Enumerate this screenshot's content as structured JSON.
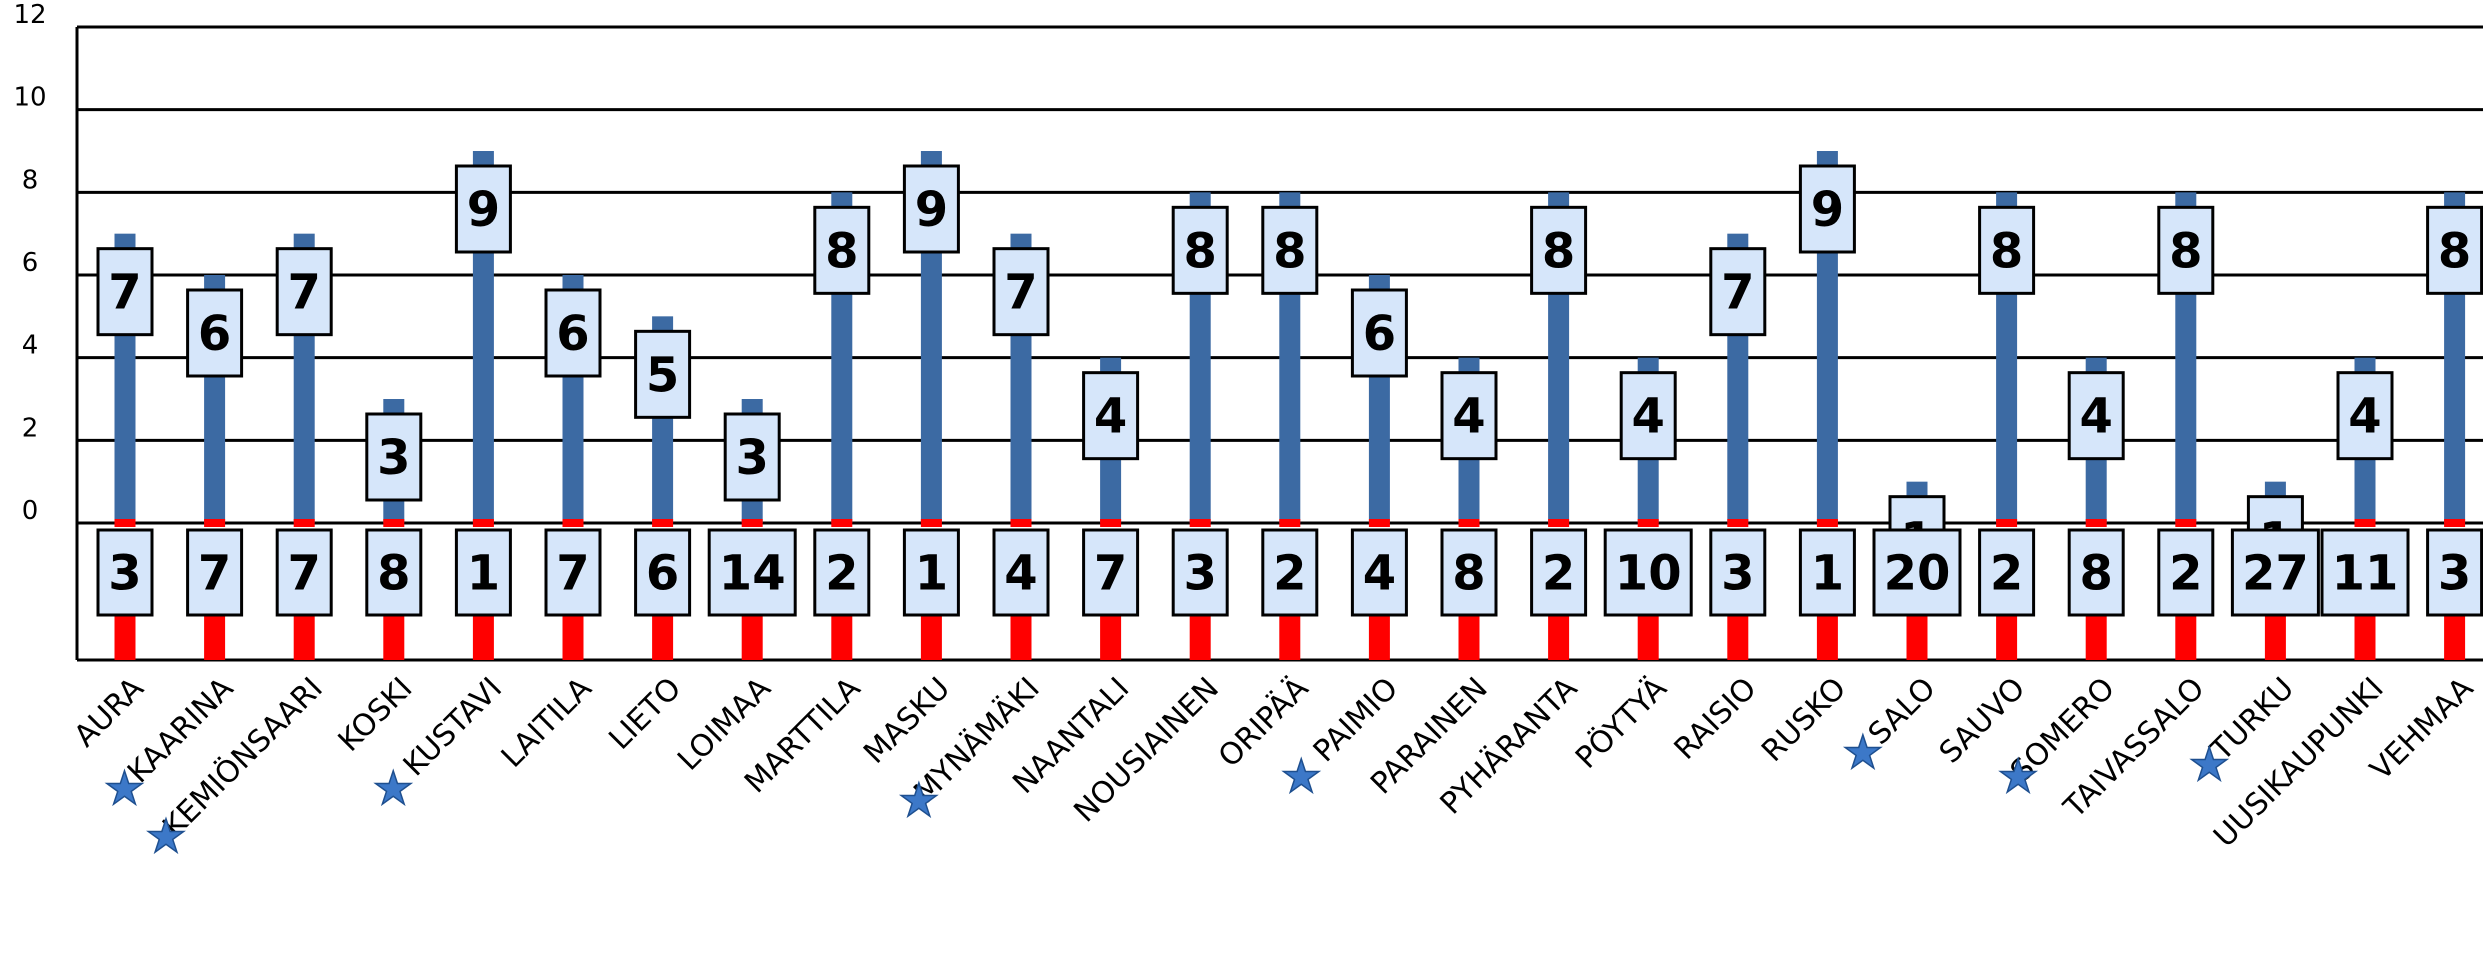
{
  "chart_data": {
    "type": "bar",
    "title": "",
    "xlabel": "",
    "ylabel": "",
    "ylim": [
      0,
      12
    ],
    "yticks": [
      0,
      2,
      4,
      6,
      8,
      10,
      12
    ],
    "grid": true,
    "legend": "none",
    "colors": {
      "bar": "#3c6aa3",
      "lower_bar": "#ff0000",
      "box_fill": "#d6e6fa",
      "box_stroke": "#000000"
    },
    "categories": [
      "AURA",
      "KAARINA",
      "KEMIÖNSAARI",
      "KOSKI",
      "KUSTAVI",
      "LAITILA",
      "LIETO",
      "LOIMAA",
      "MARTTILA",
      "MASKU",
      "MYNÄMÄKI",
      "NAANTALI",
      "NOUSIAINEN",
      "ORIPÄÄ",
      "PAIMIO",
      "PARAINEN",
      "PYHÄRANTA",
      "PÖYTYÄ",
      "RAISIO",
      "RUSKO",
      "SALO",
      "SAUVO",
      "SOMERO",
      "TAIVASSALO",
      "TURKU",
      "UUSIKAUPUNKI",
      "VEHMAA"
    ],
    "starred": [
      false,
      true,
      true,
      false,
      true,
      false,
      false,
      false,
      false,
      false,
      true,
      false,
      false,
      false,
      true,
      false,
      false,
      false,
      false,
      false,
      true,
      false,
      true,
      false,
      true,
      false,
      false
    ],
    "values": [
      7,
      6,
      7,
      3,
      9,
      6,
      5,
      3,
      8,
      9,
      7,
      4,
      8,
      8,
      6,
      4,
      8,
      4,
      7,
      9,
      1,
      8,
      4,
      8,
      1,
      4,
      8
    ],
    "lower_values": [
      3,
      7,
      7,
      8,
      1,
      7,
      6,
      14,
      2,
      1,
      4,
      7,
      3,
      2,
      4,
      8,
      2,
      10,
      3,
      1,
      20,
      2,
      8,
      2,
      27,
      11,
      3
    ],
    "star_symbol": "★"
  }
}
